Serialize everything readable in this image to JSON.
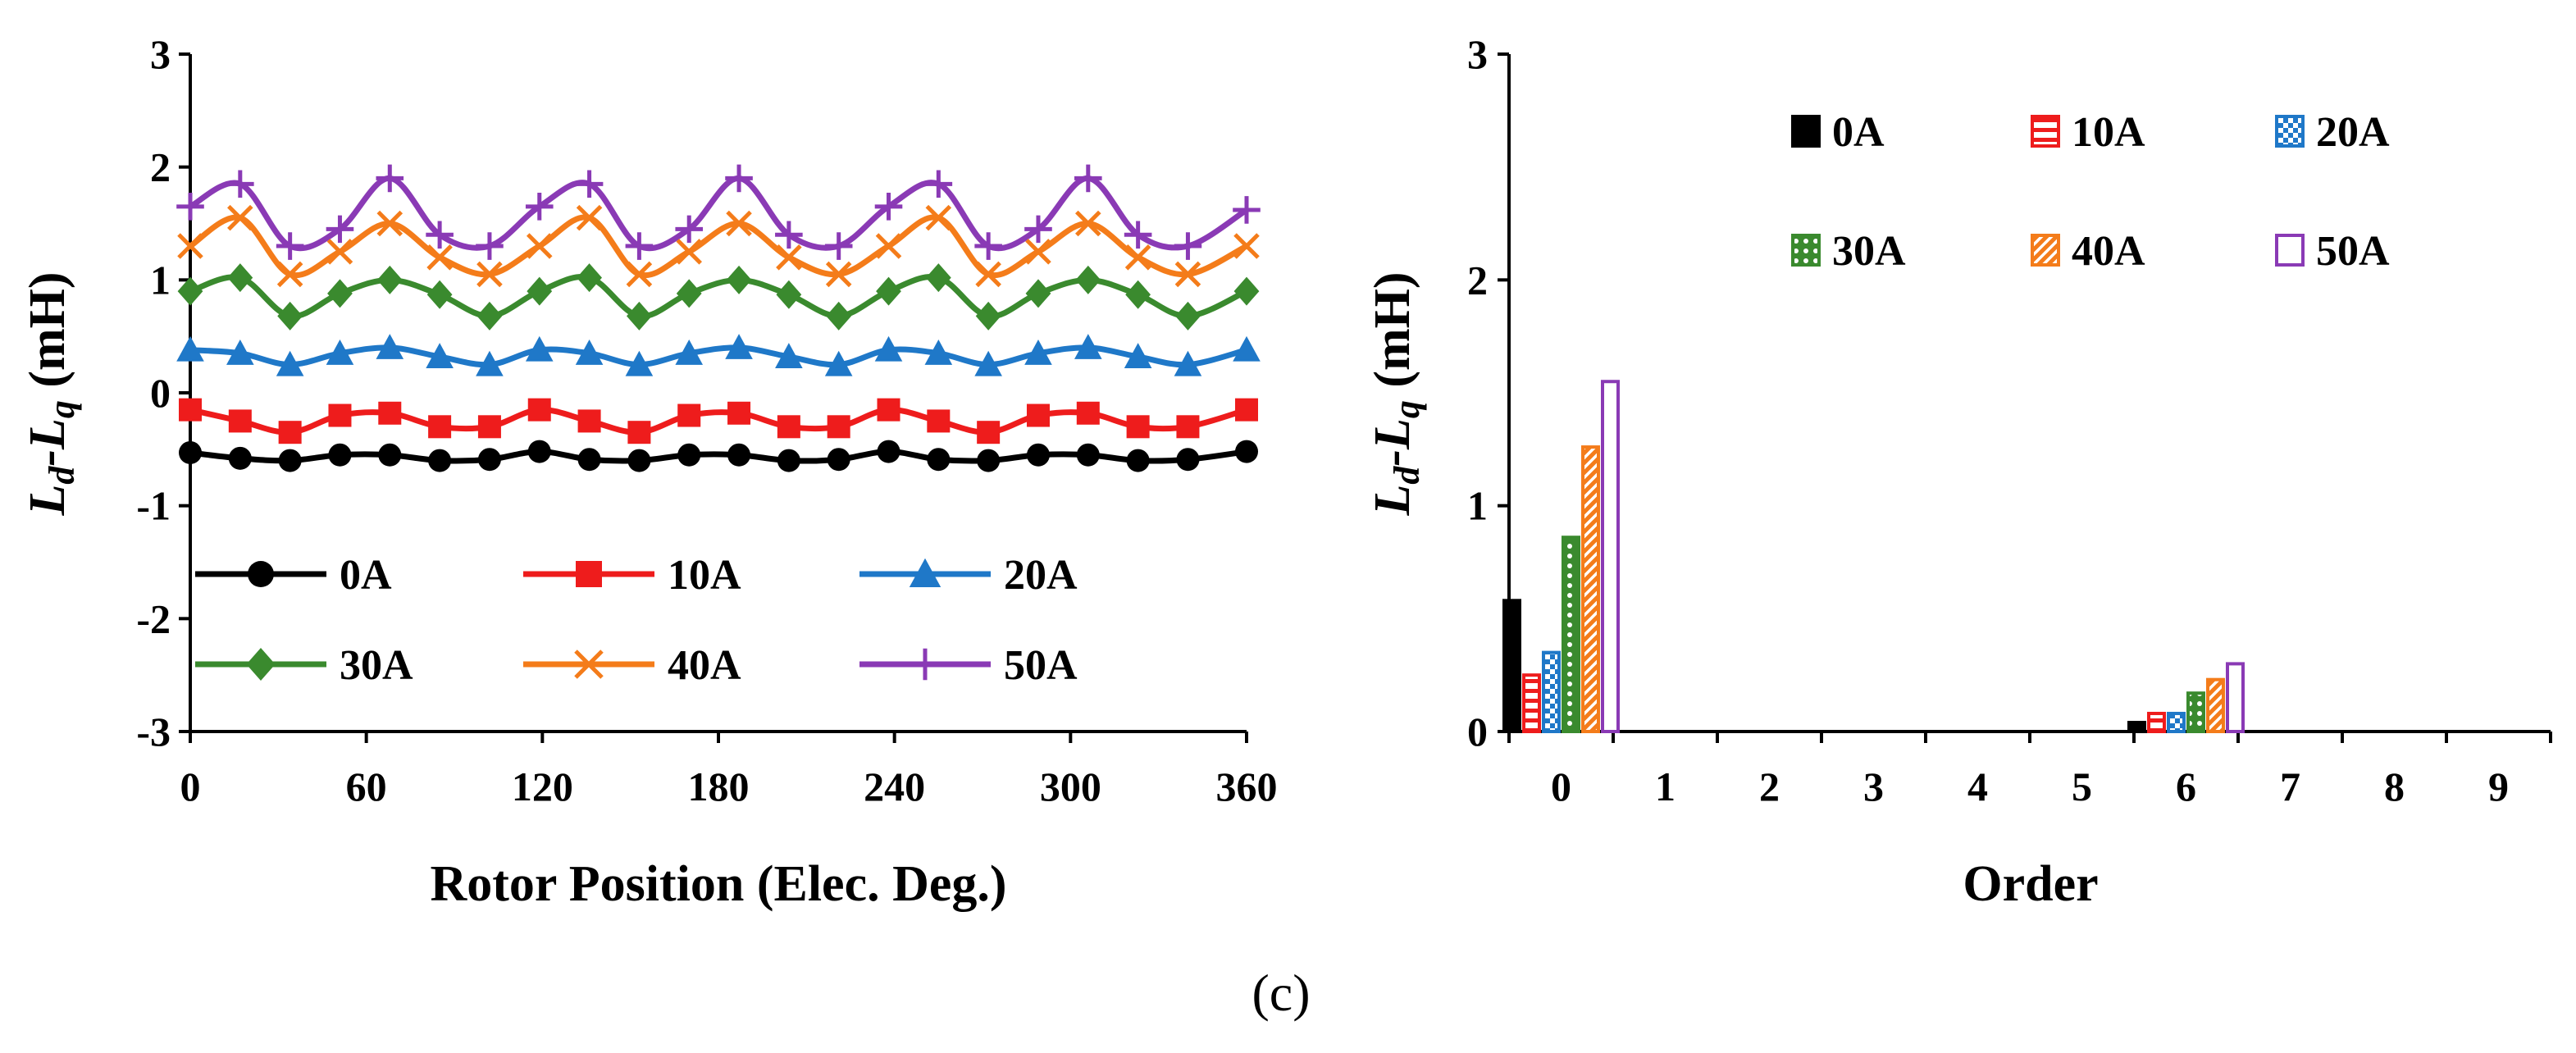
{
  "caption": "(c)",
  "chart_data": [
    {
      "type": "line",
      "title": "",
      "xlabel": "Rotor Position (Elec. Deg.)",
      "ylabel_main": "L",
      "ylabel_sub1": "d",
      "ylabel_dash": "-L",
      "ylabel_sub2": "q",
      "ylabel_unit": " (mH)",
      "xlim": [
        0,
        360
      ],
      "ylim": [
        -3,
        3
      ],
      "xticks": [
        0,
        60,
        120,
        180,
        240,
        300,
        360
      ],
      "yticks": [
        -3,
        -2,
        -1,
        0,
        1,
        2,
        3
      ],
      "legend_placement": "bottom",
      "x": [
        0,
        17,
        34,
        51,
        68,
        85,
        102,
        119,
        136,
        153,
        170,
        187,
        204,
        221,
        238,
        255,
        272,
        289,
        306,
        323,
        340,
        360
      ],
      "series": [
        {
          "name": "0A",
          "color": "#000000",
          "marker": "circle",
          "values": [
            -0.53,
            -0.58,
            -0.6,
            -0.55,
            -0.55,
            -0.6,
            -0.59,
            -0.52,
            -0.59,
            -0.6,
            -0.55,
            -0.55,
            -0.6,
            -0.59,
            -0.52,
            -0.59,
            -0.6,
            -0.55,
            -0.55,
            -0.6,
            -0.59,
            -0.52
          ]
        },
        {
          "name": "10A",
          "color": "#ee1c1c",
          "marker": "square",
          "values": [
            -0.15,
            -0.25,
            -0.35,
            -0.2,
            -0.18,
            -0.3,
            -0.3,
            -0.15,
            -0.25,
            -0.35,
            -0.2,
            -0.18,
            -0.3,
            -0.3,
            -0.15,
            -0.25,
            -0.35,
            -0.2,
            -0.18,
            -0.3,
            -0.3,
            -0.15
          ]
        },
        {
          "name": "20A",
          "color": "#1f78c8",
          "marker": "triangle",
          "values": [
            0.38,
            0.35,
            0.25,
            0.35,
            0.4,
            0.32,
            0.25,
            0.38,
            0.35,
            0.25,
            0.35,
            0.4,
            0.32,
            0.25,
            0.38,
            0.35,
            0.25,
            0.35,
            0.4,
            0.32,
            0.25,
            0.38
          ]
        },
        {
          "name": "30A",
          "color": "#3a8a2e",
          "marker": "diamond",
          "values": [
            0.9,
            1.02,
            0.68,
            0.88,
            1.0,
            0.87,
            0.68,
            0.9,
            1.02,
            0.68,
            0.88,
            1.0,
            0.87,
            0.68,
            0.9,
            1.02,
            0.68,
            0.88,
            1.0,
            0.87,
            0.68,
            0.9
          ]
        },
        {
          "name": "40A",
          "color": "#f47c1a",
          "marker": "x",
          "values": [
            1.3,
            1.55,
            1.05,
            1.25,
            1.5,
            1.2,
            1.05,
            1.3,
            1.55,
            1.05,
            1.25,
            1.5,
            1.2,
            1.05,
            1.3,
            1.55,
            1.05,
            1.25,
            1.5,
            1.2,
            1.05,
            1.3
          ]
        },
        {
          "name": "50A",
          "color": "#8a3ab5",
          "marker": "plus",
          "values": [
            1.65,
            1.85,
            1.3,
            1.45,
            1.9,
            1.4,
            1.3,
            1.65,
            1.85,
            1.3,
            1.45,
            1.9,
            1.4,
            1.3,
            1.65,
            1.85,
            1.3,
            1.45,
            1.9,
            1.4,
            1.3,
            1.62
          ]
        }
      ]
    },
    {
      "type": "bar",
      "title": "",
      "xlabel": "Order",
      "ylabel_main": "L",
      "ylabel_sub1": "d",
      "ylabel_dash": "-L",
      "ylabel_sub2": "q",
      "ylabel_unit": " (mH)",
      "ylim": [
        0,
        3
      ],
      "yticks": [
        0,
        1,
        2,
        3
      ],
      "categories": [
        "0",
        "1",
        "2",
        "3",
        "4",
        "5",
        "6",
        "7",
        "8",
        "9"
      ],
      "legend_placement": "top-right",
      "series": [
        {
          "name": "0A",
          "color": "#000000",
          "pattern": "solid",
          "values": [
            0.58,
            0,
            0,
            0,
            0,
            0,
            0.04,
            0,
            0,
            0
          ]
        },
        {
          "name": "10A",
          "color": "#ee1c1c",
          "pattern": "horizontal",
          "values": [
            0.25,
            0,
            0,
            0,
            0,
            0,
            0.08,
            0,
            0,
            0
          ]
        },
        {
          "name": "20A",
          "color": "#1f78c8",
          "pattern": "checker",
          "values": [
            0.35,
            0,
            0,
            0,
            0,
            0,
            0.08,
            0,
            0,
            0
          ]
        },
        {
          "name": "30A",
          "color": "#3a8a2e",
          "pattern": "dots",
          "values": [
            0.86,
            0,
            0,
            0,
            0,
            0,
            0.17,
            0,
            0,
            0
          ]
        },
        {
          "name": "40A",
          "color": "#f47c1a",
          "pattern": "diagonal",
          "values": [
            1.26,
            0,
            0,
            0,
            0,
            0,
            0.23,
            0,
            0,
            0
          ]
        },
        {
          "name": "50A",
          "color": "#8a3ab5",
          "pattern": "hollow",
          "values": [
            1.55,
            0,
            0,
            0,
            0,
            0,
            0.3,
            0,
            0,
            0
          ]
        }
      ]
    }
  ]
}
